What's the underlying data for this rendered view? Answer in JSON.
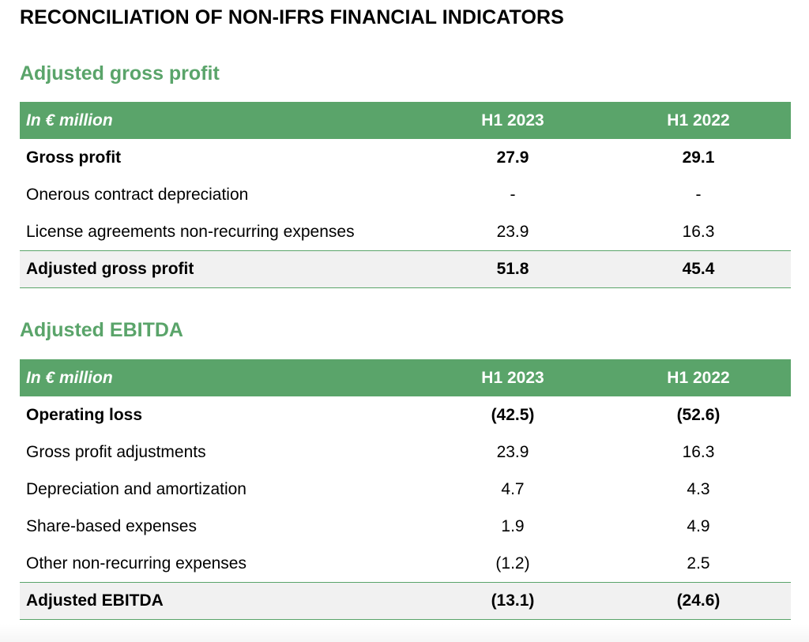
{
  "title": "RECONCILIATION OF NON-IFRS FINANCIAL INDICATORS",
  "sections": [
    {
      "title": "Adjusted gross profit",
      "header": {
        "label": "In € million",
        "col1": "H1 2023",
        "col2": "H1 2022"
      },
      "rows": [
        {
          "label": "Gross profit",
          "col1": "27.9",
          "col2": "29.1"
        },
        {
          "label": "Onerous contract depreciation",
          "col1": "-",
          "col2": "-"
        },
        {
          "label": "License agreements non-recurring expenses",
          "col1": "23.9",
          "col2": "16.3"
        }
      ],
      "total": {
        "label": "Adjusted gross profit",
        "col1": "51.8",
        "col2": "45.4"
      }
    },
    {
      "title": "Adjusted EBITDA",
      "header": {
        "label": "In € million",
        "col1": "H1 2023",
        "col2": "H1 2022"
      },
      "rows": [
        {
          "label": "Operating loss",
          "col1": "(42.5)",
          "col2": "(52.6)"
        },
        {
          "label": "Gross profit adjustments",
          "col1": "23.9",
          "col2": "16.3"
        },
        {
          "label": "Depreciation and amortization",
          "col1": "4.7",
          "col2": "4.3"
        },
        {
          "label": "Share-based expenses",
          "col1": "1.9",
          "col2": "4.9"
        },
        {
          "label": "Other non-recurring expenses",
          "col1": "(1.2)",
          "col2": "2.5"
        }
      ],
      "total": {
        "label": "Adjusted EBITDA",
        "col1": "(13.1)",
        "col2": "(24.6)"
      }
    }
  ]
}
